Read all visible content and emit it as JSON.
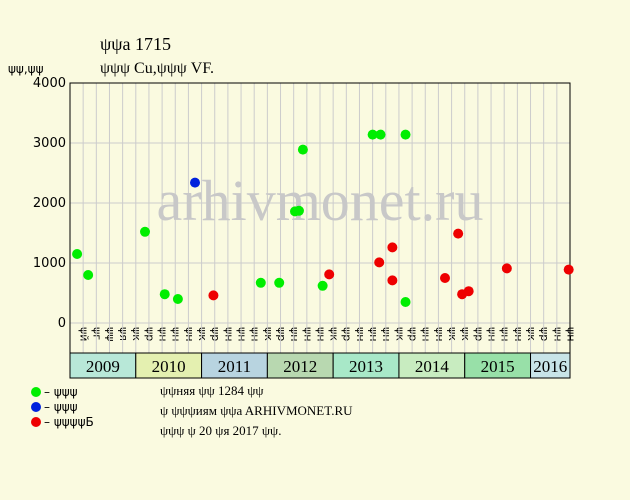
{
  "chart_data": {
    "type": "scatter",
    "title": "ψψa 1715",
    "subtitle": "ψψψ Cu,ψψψ VF.",
    "y_label": "ψψ,ψψ",
    "watermark": "arhivmonet.ru",
    "ylim": [
      0,
      4000
    ],
    "yticks": [
      0,
      1000,
      2000,
      3000,
      4000
    ],
    "grid": true,
    "xlim": [
      0,
      38
    ],
    "columns": [
      "ψй",
      "ψг",
      "ψψ",
      "ψя",
      "ψк",
      "ψр",
      "ψн",
      "ψн",
      "ψн",
      "ψк",
      "ψр",
      "ψн",
      "ψн",
      "ψн",
      "ψк",
      "ψр",
      "ψн",
      "ψн",
      "ψн",
      "ψк",
      "ψр",
      "ψн",
      "ψн",
      "ψн",
      "ψк",
      "ψр",
      "ψн",
      "ψн",
      "ψк",
      "ψк",
      "ψр",
      "ψн",
      "ψн",
      "ψн",
      "ψк",
      "ψр",
      "ψн",
      "ψн"
    ],
    "years": [
      {
        "label": "2009",
        "span": 5,
        "color": "#b8e8d8"
      },
      {
        "label": "2010",
        "span": 5,
        "color": "#e4f0b0"
      },
      {
        "label": "2011",
        "span": 5,
        "color": "#b8d4e0"
      },
      {
        "label": "2012",
        "span": 5,
        "color": "#b8d8b0"
      },
      {
        "label": "2013",
        "span": 5,
        "color": "#a8e8c8"
      },
      {
        "label": "2014",
        "span": 5,
        "color": "#c8ecc0"
      },
      {
        "label": "2015",
        "span": 5,
        "color": "#98e0a8"
      },
      {
        "label": "2016",
        "span": 3,
        "color": "#c8e4e8"
      }
    ],
    "series": [
      {
        "name": "– ψψψ",
        "color": "#00ee00",
        "x": [
          0.54,
          1.38,
          5.7,
          7.2,
          8.2,
          14.5,
          15.9,
          17.1,
          17.4,
          17.7,
          19.2,
          23,
          23.6,
          25.5,
          25.5
        ],
        "values": [
          1150,
          800,
          1520,
          480,
          400,
          670,
          670,
          1860,
          1870,
          2890,
          620,
          3140,
          3140,
          3140,
          350
        ]
      },
      {
        "name": "– ψψψ",
        "color": "#0022dd",
        "x": [
          9.5
        ],
        "values": [
          2340
        ]
      },
      {
        "name": "– ψψψψБ",
        "color": "#ee0000",
        "x": [
          10.9,
          19.7,
          23.5,
          24.5,
          24.5,
          28.5,
          29.5,
          29.8,
          30.3,
          33.2,
          37.9
        ],
        "values": [
          460,
          810,
          1010,
          1260,
          710,
          750,
          1490,
          480,
          530,
          910,
          890
        ]
      }
    ],
    "notes": [
      "ψψняя ψψ 1284 ψψ",
      "ψ ψψψиям ψψa ARHIVMONET.RU",
      "ψψψ ψ 20 ψя 2017 ψψ."
    ]
  }
}
